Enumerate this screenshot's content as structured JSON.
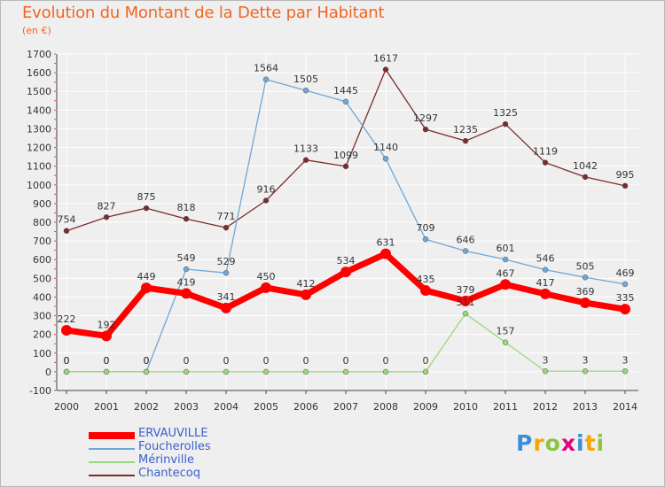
{
  "header": {
    "title": "Evolution du Montant de la Dette par Habitant",
    "subtitle": "(en €)"
  },
  "chart_data": {
    "type": "line",
    "title": "Evolution du Montant de la Dette par Habitant",
    "subtitle": "(en €)",
    "xlabel": "",
    "ylabel": "",
    "x": [
      "2000",
      "2001",
      "2002",
      "2003",
      "2004",
      "2005",
      "2006",
      "2007",
      "2008",
      "2009",
      "2010",
      "2011",
      "2012",
      "2013",
      "2014"
    ],
    "y_ticks": [
      "-100",
      "0",
      "100",
      "200",
      "300",
      "400",
      "500",
      "600",
      "700",
      "800",
      "900",
      "1000",
      "1100",
      "1200",
      "1300",
      "1400",
      "1500",
      "1600",
      "1700"
    ],
    "ylim": [
      -100,
      1700
    ],
    "grid": true,
    "legend_position": "bottom-left",
    "series": [
      {
        "name": "ERVAUVILLE",
        "color": "#ff0000",
        "values": [
          222,
          192,
          449,
          419,
          341,
          450,
          412,
          534,
          631,
          435,
          379,
          467,
          417,
          369,
          335
        ],
        "labels": [
          "222",
          "192",
          "449",
          "419",
          "341",
          "450",
          "412",
          "534",
          "631",
          "435",
          "379",
          "467",
          "417",
          "369",
          "335"
        ]
      },
      {
        "name": "Foucherolles",
        "color": "#6ea7d8",
        "values": [
          0,
          0,
          0,
          549,
          529,
          1564,
          1505,
          1445,
          1140,
          709,
          646,
          601,
          546,
          505,
          469
        ],
        "labels": [
          "0",
          "0",
          "0",
          "549",
          "529",
          "1564",
          "1505",
          "1445",
          "1140",
          "709",
          "646",
          "601",
          "546",
          "505",
          "469"
        ]
      },
      {
        "name": "Mérinville",
        "color": "#99d77a",
        "values": [
          0,
          0,
          0,
          0,
          0,
          0,
          0,
          0,
          0,
          0,
          311,
          157,
          3,
          3,
          3
        ],
        "labels": [
          "0",
          "0",
          "0",
          "0",
          "0",
          "0",
          "0",
          "0",
          "0",
          "0",
          "311",
          "157",
          "3",
          "3",
          "3"
        ]
      },
      {
        "name": "Chantecoq",
        "color": "#7a2d2d",
        "values": [
          754,
          827,
          875,
          818,
          771,
          916,
          1133,
          1099,
          1617,
          1297,
          1235,
          1325,
          1119,
          1042,
          995
        ],
        "labels": [
          "754",
          "827",
          "875",
          "818",
          "771",
          "916",
          "1133",
          "1099",
          "1617",
          "1297",
          "1235",
          "1325",
          "1119",
          "1042",
          "995"
        ]
      }
    ]
  },
  "legend": {
    "items": [
      {
        "label": "ERVAUVILLE",
        "color": "#ff0000"
      },
      {
        "label": "Foucherolles",
        "color": "#6ea7d8"
      },
      {
        "label": "Mérinville",
        "color": "#99d77a"
      },
      {
        "label": "Chantecoq",
        "color": "#7a2d2d"
      }
    ]
  },
  "logo": {
    "letters": [
      "P",
      "r",
      "o",
      "x",
      "i",
      "t",
      "i"
    ],
    "colors": [
      "#3a8fd6",
      "#f7a600",
      "#8cc63f",
      "#e4007f",
      "#3a8fd6",
      "#f7a600",
      "#8cc63f"
    ]
  }
}
